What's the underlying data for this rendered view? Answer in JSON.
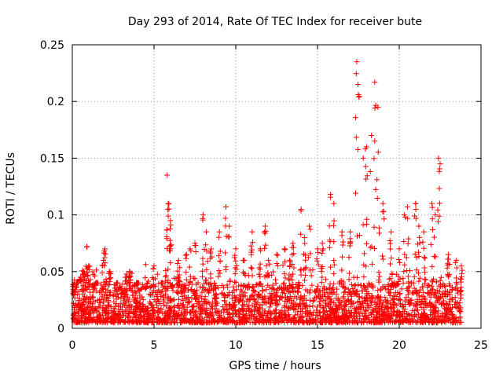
{
  "chart_data": {
    "type": "scatter",
    "title": "Day 293 of 2014, Rate Of TEC Index for receiver bute",
    "xlabel": "GPS time / hours",
    "ylabel": "ROTI / TECUs",
    "xlim": [
      0,
      25
    ],
    "ylim": [
      0,
      0.25
    ],
    "xticks": [
      0,
      5,
      10,
      15,
      20,
      25
    ],
    "xtick_labels": [
      "0",
      "5",
      "10",
      "15",
      "20",
      "25"
    ],
    "yticks": [
      0,
      0.05,
      0.1,
      0.15,
      0.2,
      0.25
    ],
    "ytick_labels": [
      "0",
      "0.05",
      "0.1",
      "0.15",
      "0.2",
      "0.25"
    ],
    "grid": true,
    "marker": "+",
    "colors": {
      "series": "#ff0000",
      "grid": "#a0a0a0",
      "axis": "#000000"
    },
    "series": [
      {
        "name": "ROTI",
        "x": [
          0.1,
          0.3,
          0.5,
          0.7,
          0.9,
          1.0,
          1.5,
          1.9,
          2.0,
          2.3,
          2.7,
          3.0,
          3.3,
          3.5,
          4.0,
          4.5,
          5.0,
          5.5,
          5.8,
          5.9,
          6.0,
          6.5,
          7.0,
          7.2,
          7.5,
          8.0,
          8.2,
          8.5,
          9.0,
          9.4,
          9.6,
          10.0,
          10.5,
          11.0,
          11.5,
          11.8,
          12.0,
          12.5,
          13.0,
          13.3,
          13.5,
          14.0,
          14.2,
          14.5,
          15.0,
          15.3,
          15.8,
          16.0,
          16.5,
          17.0,
          17.4,
          17.5,
          17.8,
          18.0,
          18.3,
          18.5,
          18.7,
          19.0,
          19.5,
          20.0,
          20.3,
          20.5,
          21.0,
          21.2,
          21.5,
          22.0,
          22.2,
          22.4,
          22.5,
          23.0,
          23.5,
          23.8
        ],
        "y": [
          0.03,
          0.04,
          0.045,
          0.05,
          0.072,
          0.055,
          0.04,
          0.06,
          0.07,
          0.05,
          0.04,
          0.03,
          0.045,
          0.05,
          0.04,
          0.035,
          0.055,
          0.04,
          0.135,
          0.11,
          0.095,
          0.06,
          0.065,
          0.07,
          0.075,
          0.1,
          0.085,
          0.07,
          0.085,
          0.107,
          0.09,
          0.07,
          0.06,
          0.085,
          0.07,
          0.09,
          0.06,
          0.065,
          0.07,
          0.06,
          0.075,
          0.105,
          0.08,
          0.09,
          0.07,
          0.075,
          0.118,
          0.11,
          0.085,
          0.085,
          0.235,
          0.206,
          0.15,
          0.16,
          0.17,
          0.217,
          0.195,
          0.11,
          0.085,
          0.07,
          0.1,
          0.107,
          0.11,
          0.09,
          0.085,
          0.11,
          0.1,
          0.15,
          0.145,
          0.065,
          0.06,
          0.055
        ],
        "baseline_range": [
          0.005,
          0.04
        ]
      }
    ]
  }
}
